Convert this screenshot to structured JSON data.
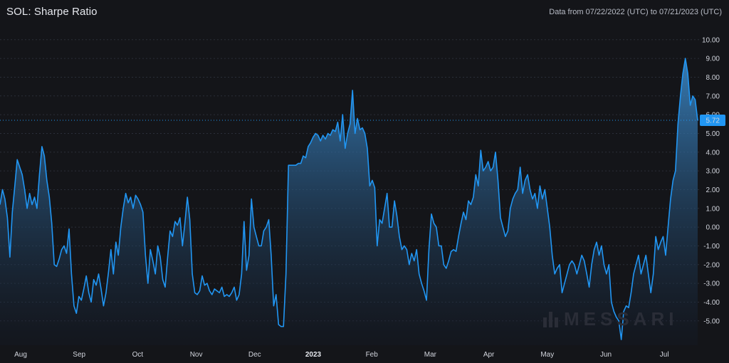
{
  "header": {
    "title": "SOL: Sharpe Ratio",
    "date_range": "Data from 07/22/2022 (UTC) to 07/21/2023 (UTC)"
  },
  "watermark": "MESSARI",
  "chart_data": {
    "type": "area",
    "series": [
      {
        "values": [
          1.2,
          2.0,
          1.5,
          0.5,
          -1.6,
          0.8,
          2.2,
          3.6,
          3.2,
          2.8,
          2.0,
          1.0,
          1.8,
          1.2,
          1.6,
          1.0,
          2.8,
          4.3,
          3.8,
          2.5,
          1.6,
          0.2,
          -2.0,
          -2.1,
          -1.7,
          -1.2,
          -1.0,
          -1.4,
          -0.1,
          -2.5,
          -4.2,
          -4.6,
          -3.7,
          -3.9,
          -3.3,
          -2.6,
          -3.5,
          -4.0,
          -2.8,
          -3.1,
          -2.5,
          -3.3,
          -4.2,
          -3.5,
          -2.4,
          -1.2,
          -2.5,
          -0.8,
          -1.5,
          0.0,
          1.0,
          1.8,
          1.3,
          1.6,
          1.0,
          1.7,
          1.5,
          1.2,
          0.8,
          -1.5,
          -3.0,
          -1.2,
          -1.8,
          -2.5,
          -1.0,
          -1.6,
          -2.8,
          -3.2,
          -1.6,
          -0.2,
          -0.5,
          0.3,
          0.1,
          0.5,
          -1.0,
          0.2,
          1.6,
          0.4,
          -2.5,
          -3.5,
          -3.6,
          -3.4,
          -2.6,
          -3.1,
          -3.0,
          -3.4,
          -3.6,
          -3.3,
          -3.4,
          -3.5,
          -3.2,
          -3.7,
          -3.6,
          -3.7,
          -3.5,
          -3.2,
          -3.9,
          -3.6,
          -2.5,
          0.3,
          -2.3,
          -1.5,
          1.5,
          0.0,
          -0.5,
          -1.0,
          -1.0,
          -0.2,
          0.0,
          0.4,
          -1.5,
          -4.2,
          -3.6,
          -5.2,
          -5.3,
          -5.3,
          -2.5,
          3.3,
          3.3,
          3.3,
          3.3,
          3.4,
          3.4,
          3.8,
          3.7,
          4.3,
          4.5,
          4.8,
          5.0,
          4.9,
          4.6,
          4.9,
          4.7,
          5.0,
          4.9,
          5.2,
          5.1,
          5.6,
          4.6,
          6.0,
          4.2,
          5.0,
          5.5,
          7.3,
          5.0,
          5.8,
          5.2,
          5.3,
          5.0,
          4.2,
          2.2,
          2.5,
          2.1,
          -1.0,
          0.4,
          0.2,
          1.0,
          1.8,
          0.0,
          0.0,
          1.4,
          0.6,
          -0.5,
          -1.2,
          -1.0,
          -1.2,
          -2.0,
          -1.4,
          -1.8,
          -1.2,
          -2.5,
          -3.0,
          -3.4,
          -3.9,
          -1.2,
          0.7,
          0.2,
          0.0,
          -1.0,
          -1.0,
          -2.0,
          -2.2,
          -1.8,
          -1.3,
          -1.2,
          -1.3,
          -0.5,
          0.2,
          0.8,
          0.4,
          1.4,
          1.2,
          1.6,
          2.8,
          2.2,
          4.1,
          3.0,
          3.2,
          3.5,
          3.0,
          3.2,
          4.0,
          2.5,
          0.5,
          0.0,
          -0.5,
          -0.2,
          1.0,
          1.5,
          1.8,
          2.0,
          3.2,
          1.8,
          2.5,
          2.8,
          2.0,
          1.5,
          1.8,
          1.0,
          2.2,
          1.5,
          2.0,
          1.0,
          0.0,
          -1.5,
          -2.5,
          -2.2,
          -2.0,
          -3.5,
          -3.0,
          -2.5,
          -2.0,
          -1.8,
          -2.0,
          -2.5,
          -2.0,
          -1.5,
          -1.8,
          -2.5,
          -3.2,
          -2.0,
          -1.2,
          -0.8,
          -1.5,
          -1.0,
          -2.0,
          -2.5,
          -2.0,
          -4.0,
          -4.5,
          -4.8,
          -5.0,
          -6.0,
          -4.5,
          -4.2,
          -4.3,
          -3.5,
          -2.5,
          -2.0,
          -1.5,
          -2.5,
          -2.0,
          -1.5,
          -2.5,
          -3.5,
          -2.5,
          -0.5,
          -1.2,
          -0.8,
          -0.5,
          -1.5,
          0.0,
          1.5,
          2.5,
          3.0,
          5.5,
          7.0,
          8.2,
          9.0,
          8.2,
          6.5,
          7.0,
          6.8,
          5.7
        ]
      }
    ],
    "x_axis_labels": [
      "Aug",
      "Sep",
      "Oct",
      "Nov",
      "Dec",
      "2023",
      "Feb",
      "Mar",
      "Apr",
      "May",
      "Jun",
      "Jul"
    ],
    "y_ticks": [
      "10.00",
      "9.00",
      "8.00",
      "7.00",
      "6.00",
      "5.00",
      "4.00",
      "3.00",
      "2.00",
      "1.00",
      "0.00",
      "-1.00",
      "-2.00",
      "-3.00",
      "-4.00",
      "-5.00"
    ],
    "ylim": [
      -6.3,
      10.6
    ],
    "last_value_label": "5.72",
    "colors": {
      "line": "#2196f3",
      "fill_top": "#3d8ed1",
      "fill_bottom": "#131a28",
      "background": "#141519"
    }
  }
}
